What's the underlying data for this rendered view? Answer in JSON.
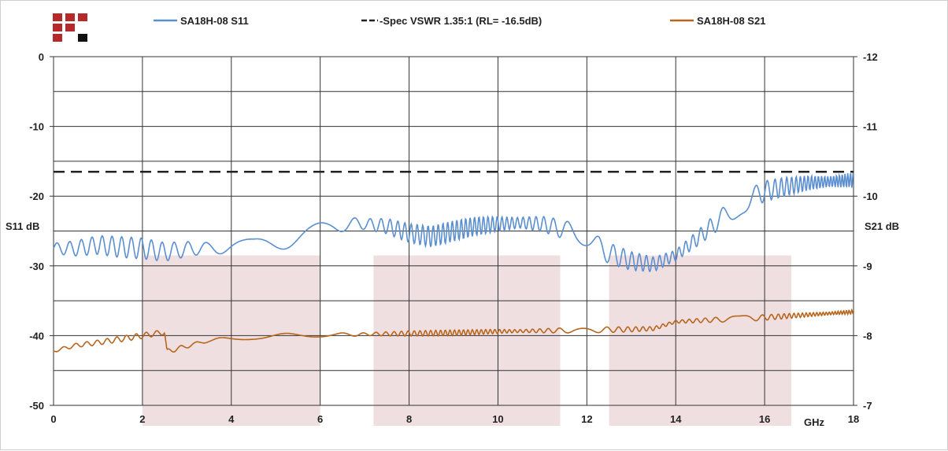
{
  "chart_data": {
    "type": "line",
    "x_unit": "GHz",
    "xlim": [
      0,
      18
    ],
    "x_ticks": [
      0,
      2,
      4,
      6,
      8,
      10,
      12,
      14,
      16,
      18
    ],
    "left_axis": {
      "label": "S11 dB",
      "ylim": [
        -50,
        0
      ],
      "ticks": [
        0,
        -10,
        -20,
        -30,
        -40,
        -50
      ]
    },
    "right_axis": {
      "label": "S21 dB",
      "ylim": [
        -12,
        -7
      ],
      "ticks": [
        -7,
        -8,
        -9,
        -10,
        -11,
        -12
      ]
    },
    "grid": true,
    "legend_position": "top",
    "series": [
      {
        "name": "SA18H-08 S11",
        "axis": "left",
        "color": "#5b8fd0",
        "ripple": 1.5,
        "x": [
          0,
          0.5,
          1.0,
          1.5,
          2.0,
          2.5,
          3.0,
          3.5,
          4.0,
          4.5,
          5.0,
          5.5,
          6.0,
          6.5,
          7.0,
          7.5,
          8.0,
          8.5,
          9.0,
          9.5,
          10.0,
          10.5,
          11.0,
          11.5,
          12.0,
          12.5,
          13.0,
          13.5,
          14.0,
          14.5,
          15.0,
          15.5,
          16.0,
          16.5,
          17.0,
          17.5,
          18.0
        ],
        "y": [
          -27.5,
          -27.5,
          -27.0,
          -27.3,
          -27.5,
          -28.0,
          -27.6,
          -27.4,
          -27.3,
          -27.2,
          -26.5,
          -25.5,
          -24.5,
          -24.0,
          -24.0,
          -24.3,
          -25.3,
          -25.8,
          -25.0,
          -24.3,
          -24.0,
          -23.8,
          -24.0,
          -24.8,
          -26.3,
          -28.2,
          -29.3,
          -29.8,
          -28.5,
          -26.0,
          -23.3,
          -21.0,
          -19.3,
          -18.6,
          -18.1,
          -17.9,
          -17.7
        ]
      },
      {
        "name": "-Spec VSWR 1.35:1 (RL= -16.5dB)",
        "axis": "left",
        "color": "#222222",
        "dashed": true,
        "x": [
          0,
          18
        ],
        "y": [
          -16.5,
          -16.5
        ]
      },
      {
        "name": "SA18H-08 S21",
        "axis": "right",
        "color": "#b8661e",
        "ripple": 0.04,
        "x": [
          0,
          0.5,
          1.0,
          1.5,
          2.0,
          2.5,
          2.55,
          3.0,
          3.5,
          4.0,
          5.0,
          6.0,
          7.0,
          8.0,
          9.0,
          10.0,
          11.0,
          12.0,
          13.0,
          13.5,
          14.0,
          15.0,
          16.0,
          17.0,
          18.0
        ],
        "y": [
          -7.78,
          -7.86,
          -7.9,
          -7.95,
          -8.0,
          -8.05,
          -7.77,
          -7.85,
          -7.93,
          -7.96,
          -7.99,
          -8.0,
          -8.02,
          -8.03,
          -8.04,
          -8.06,
          -8.07,
          -8.08,
          -8.09,
          -8.1,
          -8.2,
          -8.23,
          -8.26,
          -8.3,
          -8.34
        ]
      }
    ],
    "highlight_bands_ghz": [
      [
        2,
        6
      ],
      [
        7.2,
        11.4
      ],
      [
        12.5,
        16.6
      ]
    ],
    "highlight_band_y_top_db": -28.5
  },
  "colors": {
    "band": "#f0dfe0",
    "grid": "#333333",
    "logo_red": "#b5292a",
    "logo_black": "#111111"
  },
  "logo": {
    "icon": "company-logo-icon"
  }
}
